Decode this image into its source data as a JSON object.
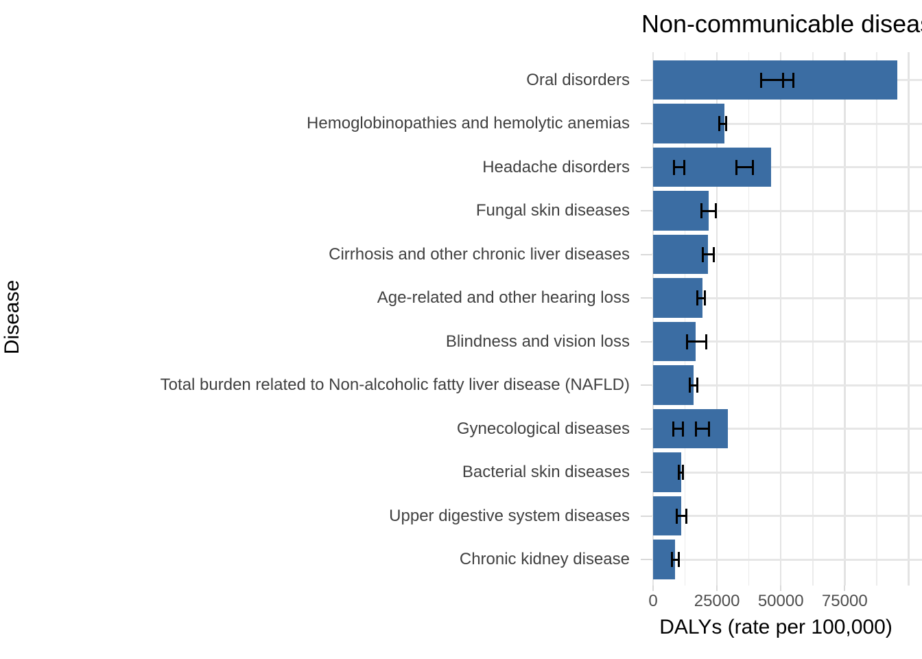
{
  "title": "Non-communicable diseases",
  "axes": {
    "x_label": "DALYs (rate per 100,000)",
    "y_label": "Disease"
  },
  "colors": {
    "bar": "#3b6da3",
    "error_bar": "#000000",
    "gridline_major": "#e3e3e3",
    "gridline_minor": "#ebebeb",
    "axis_text": "#4d4d4d",
    "category_text": "#404040"
  },
  "chart_data": {
    "type": "bar",
    "orientation": "horizontal",
    "title": "Non-communicable diseases",
    "xlabel": "DALYs (rate per 100,000)",
    "ylabel": "Disease",
    "xlim": [
      0,
      105000
    ],
    "grid": true,
    "x_tick_values": [
      0,
      25000,
      50000,
      75000
    ],
    "x_tick_labels": [
      "0",
      "25000",
      "50000",
      "75000"
    ],
    "x_major_gridlines": [
      0,
      25000,
      50000,
      75000,
      100000
    ],
    "x_minor_gridlines": [
      12500,
      37500,
      62500,
      87500
    ],
    "categories": [
      "Oral disorders",
      "Hemoglobinopathies and hemolytic anemias",
      "Headache disorders",
      "Fungal skin diseases",
      "Cirrhosis and other chronic liver diseases",
      "Age-related and other hearing loss",
      "Blindness and vision loss",
      "Total burden related to Non-alcoholic fatty liver disease (NAFLD)",
      "Gynecological diseases",
      "Bacterial skin diseases",
      "Upper digestive system diseases",
      "Chronic kidney disease"
    ],
    "values": [
      95600,
      27900,
      46200,
      21700,
      21600,
      19400,
      16700,
      15900,
      29200,
      11100,
      10900,
      8600
    ],
    "error_bars": [
      [
        {
          "lo": 42400,
          "hi": 50900
        },
        {
          "lo": 50900,
          "hi": 55000
        }
      ],
      [
        {
          "lo": 25800,
          "hi": 28500
        }
      ],
      [
        {
          "lo": 8300,
          "hi": 12350
        },
        {
          "lo": 32500,
          "hi": 39200
        }
      ],
      [
        {
          "lo": 19050,
          "hi": 24450
        }
      ],
      [
        {
          "lo": 19350,
          "hi": 23650
        }
      ],
      [
        {
          "lo": 17450,
          "hi": 20400
        }
      ],
      [
        {
          "lo": 13350,
          "hi": 20750
        }
      ],
      [
        {
          "lo": 14300,
          "hi": 17350
        }
      ],
      [
        {
          "lo": 8000,
          "hi": 11550
        },
        {
          "lo": 16900,
          "hi": 21850
        }
      ],
      [
        {
          "lo": 10000,
          "hi": 11800
        }
      ],
      [
        {
          "lo": 9300,
          "hi": 12900
        }
      ],
      [
        {
          "lo": 7350,
          "hi": 10050
        }
      ]
    ]
  }
}
